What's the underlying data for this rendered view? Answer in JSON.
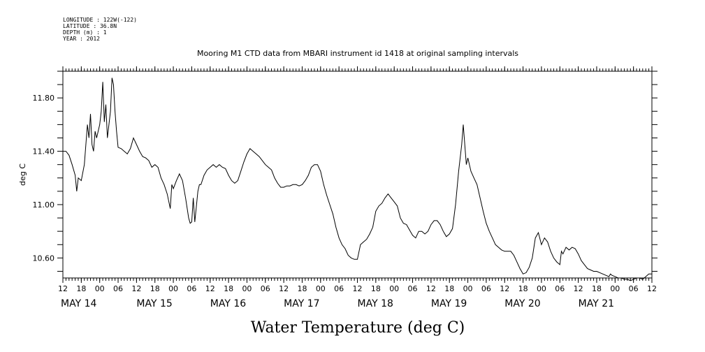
{
  "header": {
    "longitude": "LONGITUDE : 122W(-122)",
    "latitude": "LATITUDE : 36.8N",
    "depth": "DEPTH (m) : 1",
    "year": "YEAR : 2012"
  },
  "chart_data": {
    "type": "line",
    "title": "Mooring M1 CTD data from MBARI instrument id 1418 at original sampling intervals",
    "xlabel": "Water Temperature (deg C)",
    "ylabel": "deg C",
    "x_unit": "hours since 2012-05-13 12:00",
    "xlim": [
      0,
      192
    ],
    "ylim": [
      10.45,
      12.0
    ],
    "yticks": [
      10.6,
      11.0,
      11.4,
      11.8
    ],
    "ytick_labels": [
      "10.60",
      "11.00",
      "11.40",
      "11.80"
    ],
    "xtick_labels": [
      "12",
      "18",
      "00",
      "06",
      "12",
      "18",
      "00",
      "06",
      "12",
      "18",
      "00",
      "06",
      "12",
      "18",
      "00",
      "06",
      "12",
      "18",
      "00",
      "06",
      "12",
      "18",
      "00",
      "06",
      "12",
      "18",
      "00",
      "06",
      "12",
      "18",
      "00",
      "06",
      "12"
    ],
    "day_labels": [
      {
        "label": "MAY 14",
        "hour": 0
      },
      {
        "label": "MAY 15",
        "hour": 24
      },
      {
        "label": "MAY 16",
        "hour": 48
      },
      {
        "label": "MAY 17",
        "hour": 72
      },
      {
        "label": "MAY 18",
        "hour": 96
      },
      {
        "label": "MAY 19",
        "hour": 120
      },
      {
        "label": "MAY 20",
        "hour": 144
      },
      {
        "label": "MAY 21",
        "hour": 168
      }
    ],
    "grid": false,
    "series": [
      {
        "color": "#000000",
        "points": [
          [
            0,
            11.4
          ],
          [
            1,
            11.4
          ],
          [
            2,
            11.37
          ],
          [
            3,
            11.3
          ],
          [
            4,
            11.22
          ],
          [
            4.5,
            11.1
          ],
          [
            5,
            11.2
          ],
          [
            6,
            11.18
          ],
          [
            7,
            11.3
          ],
          [
            7.5,
            11.45
          ],
          [
            8,
            11.6
          ],
          [
            8.5,
            11.5
          ],
          [
            9,
            11.68
          ],
          [
            9.5,
            11.45
          ],
          [
            10,
            11.4
          ],
          [
            10.5,
            11.55
          ],
          [
            11,
            11.5
          ],
          [
            12,
            11.6
          ],
          [
            12.5,
            11.7
          ],
          [
            13,
            11.92
          ],
          [
            13.5,
            11.62
          ],
          [
            14,
            11.75
          ],
          [
            14.5,
            11.5
          ],
          [
            15,
            11.6
          ],
          [
            15.5,
            11.7
          ],
          [
            16,
            11.95
          ],
          [
            16.5,
            11.9
          ],
          [
            17,
            11.7
          ],
          [
            17.5,
            11.55
          ],
          [
            18,
            11.43
          ],
          [
            19,
            11.42
          ],
          [
            20,
            11.4
          ],
          [
            21,
            11.38
          ],
          [
            22,
            11.42
          ],
          [
            23,
            11.5
          ],
          [
            24,
            11.45
          ],
          [
            25,
            11.4
          ],
          [
            26,
            11.36
          ],
          [
            27,
            11.35
          ],
          [
            28,
            11.33
          ],
          [
            29,
            11.28
          ],
          [
            30,
            11.3
          ],
          [
            31,
            11.28
          ],
          [
            32,
            11.2
          ],
          [
            33,
            11.15
          ],
          [
            34,
            11.08
          ],
          [
            35,
            10.97
          ],
          [
            35.5,
            11.15
          ],
          [
            36,
            11.12
          ],
          [
            37,
            11.18
          ],
          [
            38,
            11.23
          ],
          [
            39,
            11.18
          ],
          [
            40,
            11.05
          ],
          [
            41,
            10.9
          ],
          [
            41.5,
            10.86
          ],
          [
            42,
            10.87
          ],
          [
            42.5,
            11.05
          ],
          [
            43,
            10.87
          ],
          [
            44,
            11.1
          ],
          [
            44.5,
            11.15
          ],
          [
            45,
            11.15
          ],
          [
            46,
            11.22
          ],
          [
            47,
            11.26
          ],
          [
            48,
            11.28
          ],
          [
            49,
            11.3
          ],
          [
            50,
            11.28
          ],
          [
            51,
            11.3
          ],
          [
            52,
            11.28
          ],
          [
            53,
            11.27
          ],
          [
            54,
            11.22
          ],
          [
            55,
            11.18
          ],
          [
            56,
            11.16
          ],
          [
            57,
            11.18
          ],
          [
            58,
            11.25
          ],
          [
            59,
            11.32
          ],
          [
            60,
            11.38
          ],
          [
            61,
            11.42
          ],
          [
            62,
            11.4
          ],
          [
            63,
            11.38
          ],
          [
            64,
            11.36
          ],
          [
            65,
            11.33
          ],
          [
            66,
            11.3
          ],
          [
            67,
            11.28
          ],
          [
            68,
            11.26
          ],
          [
            69,
            11.2
          ],
          [
            70,
            11.16
          ],
          [
            71,
            11.13
          ],
          [
            72,
            11.13
          ],
          [
            73,
            11.14
          ],
          [
            74,
            11.14
          ],
          [
            75,
            11.15
          ],
          [
            76,
            11.15
          ],
          [
            77,
            11.14
          ],
          [
            78,
            11.15
          ],
          [
            79,
            11.18
          ],
          [
            80,
            11.22
          ],
          [
            81,
            11.28
          ],
          [
            82,
            11.3
          ],
          [
            83,
            11.3
          ],
          [
            84,
            11.25
          ],
          [
            85,
            11.15
          ],
          [
            86,
            11.07
          ],
          [
            87,
            11.0
          ],
          [
            88,
            10.93
          ],
          [
            89,
            10.83
          ],
          [
            90,
            10.75
          ],
          [
            91,
            10.7
          ],
          [
            92,
            10.67
          ],
          [
            93,
            10.62
          ],
          [
            94,
            10.6
          ],
          [
            95,
            10.59
          ],
          [
            96,
            10.59
          ],
          [
            97,
            10.7
          ],
          [
            98,
            10.72
          ],
          [
            99,
            10.74
          ],
          [
            100,
            10.78
          ],
          [
            101,
            10.83
          ],
          [
            102,
            10.95
          ],
          [
            103,
            10.99
          ],
          [
            104,
            11.01
          ],
          [
            105,
            11.05
          ],
          [
            106,
            11.08
          ],
          [
            107,
            11.05
          ],
          [
            108,
            11.02
          ],
          [
            109,
            10.99
          ],
          [
            110,
            10.9
          ],
          [
            111,
            10.86
          ],
          [
            112,
            10.85
          ],
          [
            113,
            10.81
          ],
          [
            114,
            10.77
          ],
          [
            115,
            10.75
          ],
          [
            116,
            10.8
          ],
          [
            117,
            10.8
          ],
          [
            118,
            10.78
          ],
          [
            119,
            10.8
          ],
          [
            120,
            10.85
          ],
          [
            121,
            10.88
          ],
          [
            122,
            10.88
          ],
          [
            123,
            10.85
          ],
          [
            124,
            10.8
          ],
          [
            125,
            10.76
          ],
          [
            126,
            10.78
          ],
          [
            127,
            10.82
          ],
          [
            128,
            11.0
          ],
          [
            129,
            11.25
          ],
          [
            130,
            11.45
          ],
          [
            130.5,
            11.6
          ],
          [
            131,
            11.45
          ],
          [
            131.5,
            11.3
          ],
          [
            132,
            11.35
          ],
          [
            133,
            11.25
          ],
          [
            134,
            11.2
          ],
          [
            135,
            11.15
          ],
          [
            136,
            11.05
          ],
          [
            137,
            10.95
          ],
          [
            138,
            10.86
          ],
          [
            139,
            10.8
          ],
          [
            140,
            10.75
          ],
          [
            141,
            10.7
          ],
          [
            142,
            10.68
          ],
          [
            143,
            10.66
          ],
          [
            144,
            10.65
          ],
          [
            145,
            10.65
          ],
          [
            146,
            10.65
          ],
          [
            147,
            10.62
          ],
          [
            148,
            10.57
          ],
          [
            149,
            10.52
          ],
          [
            150,
            10.48
          ],
          [
            151,
            10.49
          ],
          [
            152,
            10.53
          ],
          [
            153,
            10.6
          ],
          [
            154,
            10.75
          ],
          [
            155,
            10.79
          ],
          [
            156,
            10.7
          ],
          [
            157,
            10.75
          ],
          [
            158,
            10.72
          ],
          [
            159,
            10.65
          ],
          [
            160,
            10.6
          ],
          [
            161,
            10.57
          ],
          [
            162,
            10.55
          ],
          [
            162.5,
            10.65
          ],
          [
            163,
            10.63
          ],
          [
            164,
            10.68
          ],
          [
            165,
            10.66
          ],
          [
            166,
            10.68
          ],
          [
            167,
            10.67
          ],
          [
            168,
            10.63
          ],
          [
            169,
            10.58
          ],
          [
            170,
            10.55
          ],
          [
            171,
            10.52
          ],
          [
            172,
            10.51
          ],
          [
            173,
            10.5
          ],
          [
            174,
            10.5
          ],
          [
            175,
            10.49
          ],
          [
            176,
            10.48
          ],
          [
            177,
            10.47
          ],
          [
            178,
            10.46
          ],
          [
            178.5,
            10.48
          ],
          [
            179,
            10.47
          ],
          [
            180,
            10.46
          ],
          [
            181,
            10.45
          ],
          [
            182,
            10.45
          ],
          [
            183,
            10.44
          ],
          [
            184,
            10.44
          ],
          [
            185,
            10.43
          ],
          [
            186,
            10.44
          ],
          [
            187,
            10.45
          ],
          [
            188,
            10.45
          ],
          [
            189,
            10.44
          ],
          [
            190,
            10.46
          ],
          [
            191,
            10.48
          ],
          [
            192,
            10.48
          ]
        ]
      }
    ]
  }
}
